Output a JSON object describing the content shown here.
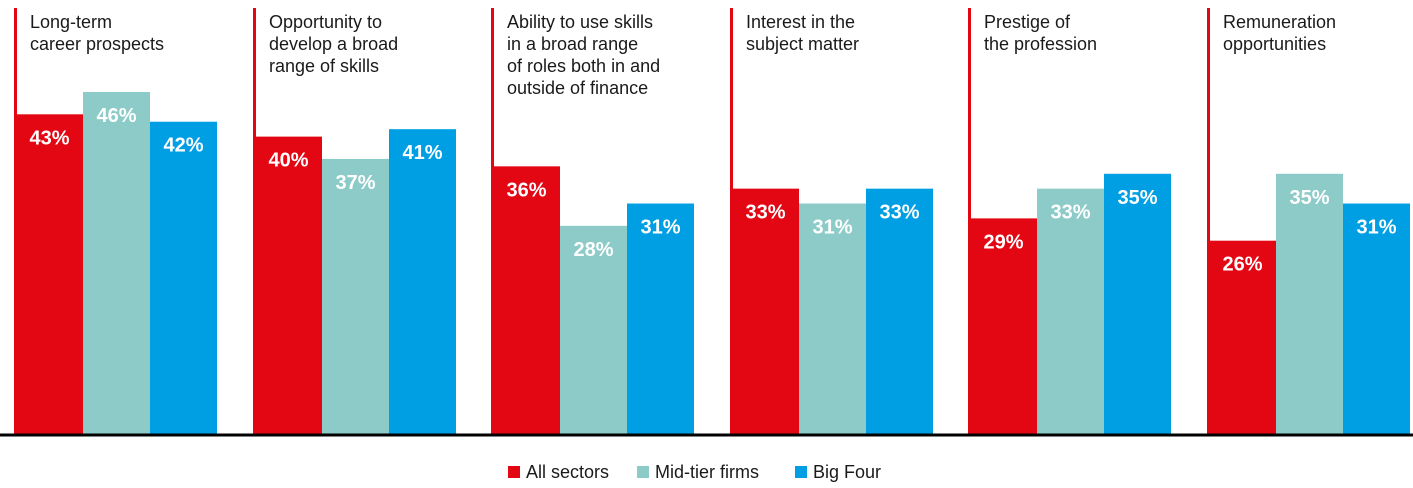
{
  "chart_data": {
    "type": "bar",
    "categories": [
      [
        "Long-term",
        "career prospects"
      ],
      [
        "Opportunity to",
        "develop a broad",
        "range of skills"
      ],
      [
        "Ability to use skills",
        "in a broad range",
        "of roles both in and",
        "outside of finance"
      ],
      [
        "Interest in the",
        "subject matter"
      ],
      [
        "Prestige of",
        "the profession"
      ],
      [
        "Remuneration",
        "opportunities"
      ]
    ],
    "series": [
      {
        "name": "All sectors",
        "color": "#e30613",
        "values": [
          43,
          40,
          36,
          33,
          29,
          26
        ],
        "labels": [
          "43%",
          "40%",
          "36%",
          "33%",
          "29%",
          "26%"
        ]
      },
      {
        "name": "Mid-tier firms",
        "color": "#8dcbc9",
        "values": [
          46,
          37,
          28,
          31,
          33,
          35
        ],
        "labels": [
          "46%",
          "37%",
          "28%",
          "31%",
          "33%",
          "35%"
        ]
      },
      {
        "name": "Big Four",
        "color": "#009fe3",
        "values": [
          42,
          41,
          31,
          33,
          35,
          31
        ],
        "labels": [
          "42%",
          "41%",
          "31%",
          "33%",
          "35%",
          "31%"
        ]
      }
    ],
    "ylim": [
      0,
      46
    ],
    "grid": false,
    "legend_position": "bottom-center",
    "accent_line_color": "#e30613",
    "baseline_color": "#000000"
  }
}
